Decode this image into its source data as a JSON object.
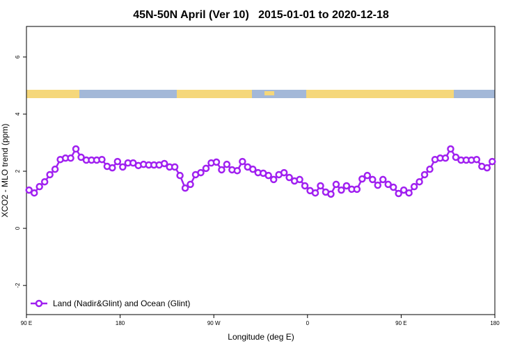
{
  "chart_data": {
    "type": "line",
    "title": "45N-50N April (Ver 10)   2015-01-01 to 2020-12-18",
    "x_label": "Longitude (deg E)",
    "y_label": "XCO2 - MLO trend (ppm)",
    "xlim": [
      90,
      540
    ],
    "xticks": [
      {
        "value": 90,
        "label": "90 E"
      },
      {
        "value": 180,
        "label": "180"
      },
      {
        "value": 270,
        "label": "90 W"
      },
      {
        "value": 360,
        "label": "0"
      },
      {
        "value": 450,
        "label": "90 E"
      },
      {
        "value": 540,
        "label": "180"
      }
    ],
    "ylim": [
      -3.02,
      7.07
    ],
    "yticks": [
      -2,
      0,
      2,
      4,
      6
    ],
    "legend": "bottom-left",
    "x": [
      92.5,
      97.5,
      102.5,
      107.5,
      112.5,
      117.5,
      122.5,
      127.5,
      132.5,
      137.5,
      142.5,
      147.5,
      152.5,
      157.5,
      162.5,
      167.5,
      172.5,
      177.5,
      182.5,
      187.5,
      192.5,
      197.5,
      202.5,
      207.5,
      212.5,
      217.5,
      222.5,
      227.5,
      232.5,
      237.5,
      242.5,
      247.5,
      252.5,
      257.5,
      262.5,
      267.5,
      272.5,
      277.5,
      282.5,
      287.5,
      292.5,
      297.5,
      302.5,
      307.5,
      312.5,
      317.5,
      322.5,
      327.5,
      332.5,
      337.5,
      342.5,
      347.5,
      352.5,
      357.5,
      362.5,
      367.5,
      372.5,
      377.5,
      382.5,
      387.5,
      392.5,
      397.5,
      402.5,
      407.5,
      412.5,
      417.5,
      422.5,
      427.5,
      432.5,
      437.5,
      442.5,
      447.5,
      452.5,
      457.5,
      462.5,
      467.5,
      472.5,
      477.5,
      482.5,
      487.5,
      492.5,
      497.5,
      502.5,
      507.5,
      512.5,
      517.5,
      522.5,
      527.5,
      532.5,
      537.5
    ],
    "series": [
      {
        "name": "Land (Nadir&Glint) and Ocean (Glint)",
        "color": "#a020f0",
        "values": [
          1.34,
          1.24,
          1.46,
          1.63,
          1.88,
          2.07,
          2.41,
          2.46,
          2.46,
          2.78,
          2.49,
          2.39,
          2.39,
          2.39,
          2.41,
          2.17,
          2.12,
          2.34,
          2.15,
          2.29,
          2.29,
          2.2,
          2.24,
          2.22,
          2.22,
          2.22,
          2.27,
          2.15,
          2.15,
          1.85,
          1.41,
          1.54,
          1.88,
          1.95,
          2.1,
          2.29,
          2.32,
          2.05,
          2.24,
          2.05,
          2.02,
          2.34,
          2.15,
          2.07,
          1.95,
          1.93,
          1.85,
          1.71,
          1.88,
          1.95,
          1.78,
          1.66,
          1.71,
          1.49,
          1.32,
          1.24,
          1.49,
          1.27,
          1.2,
          1.54,
          1.34,
          1.49,
          1.37,
          1.37,
          1.73,
          1.85,
          1.71,
          1.51,
          1.71,
          1.54,
          1.44,
          1.22,
          1.34,
          1.24,
          1.46,
          1.63,
          1.88,
          2.07,
          2.41,
          2.46,
          2.46,
          2.78,
          2.49,
          2.39,
          2.39,
          2.39,
          2.41,
          2.17,
          2.12,
          2.34
        ]
      }
    ]
  }
}
